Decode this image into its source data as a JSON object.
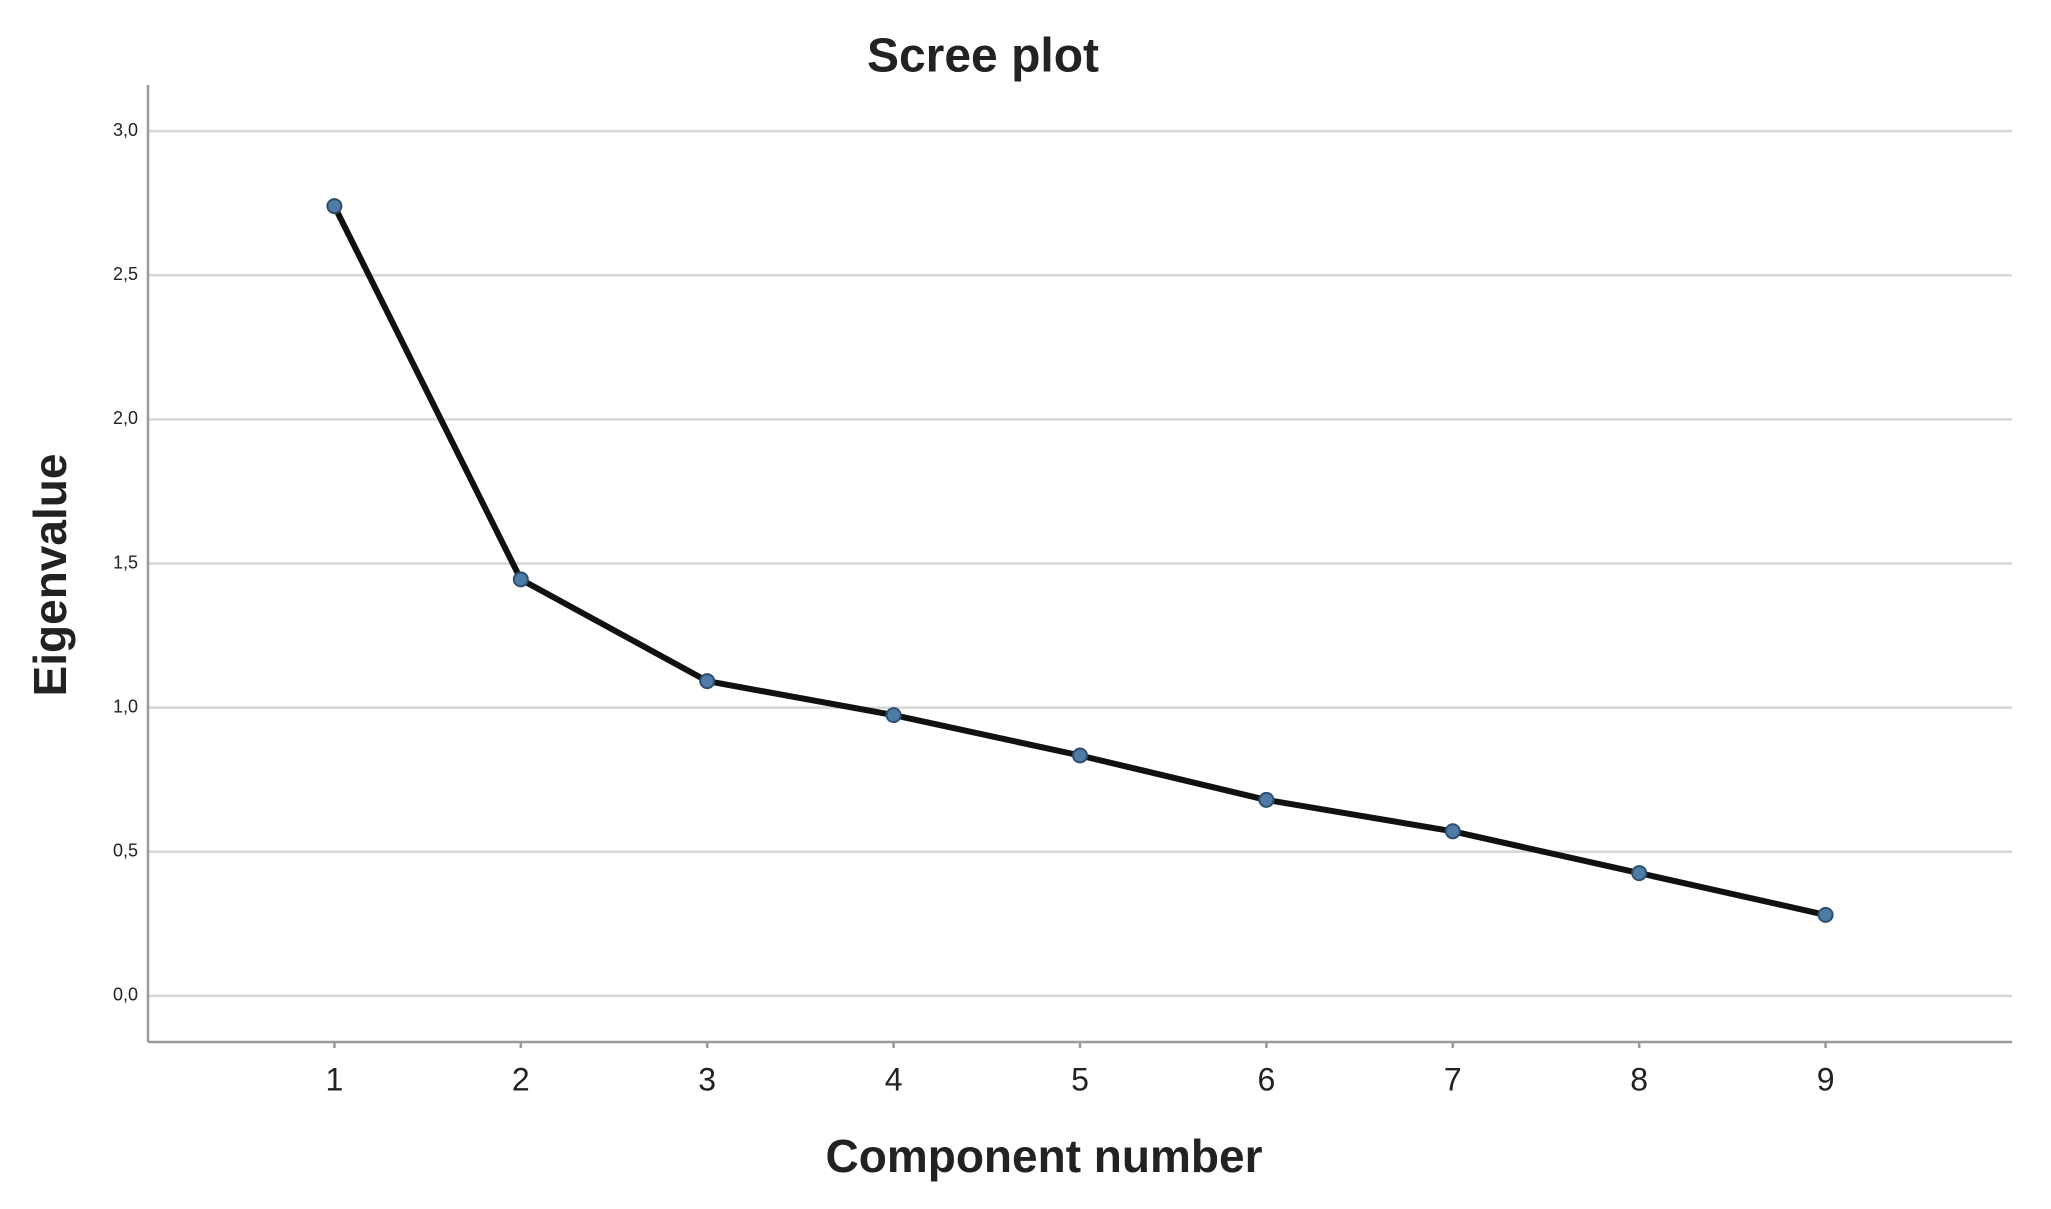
{
  "chart_data": {
    "type": "line",
    "title": "Scree plot",
    "x_label": "Component number",
    "y_label": "Eigenvalue",
    "x": [
      1,
      2,
      3,
      4,
      5,
      6,
      7,
      8,
      9
    ],
    "values": [
      2.74,
      1.445,
      1.092,
      0.974,
      0.834,
      0.68,
      0.571,
      0.426,
      0.281
    ],
    "color": "#111111",
    "marker_color": "#4f7ca6",
    "xlim": [
      0,
      10
    ],
    "xticks": [
      1,
      2,
      3,
      4,
      5,
      6,
      7,
      8,
      9
    ],
    "ylim": [
      -0.16,
      3.16
    ],
    "yticks": [
      {
        "value": 0,
        "label": "0,0"
      },
      {
        "value": 0.5,
        "label": "0,5"
      },
      {
        "value": 1,
        "label": "1,0"
      },
      {
        "value": 1.5,
        "label": "1,5"
      },
      {
        "value": 2,
        "label": "2,0"
      },
      {
        "value": 2.5,
        "label": "2,5"
      },
      {
        "value": 3,
        "label": "3,0"
      }
    ],
    "grid": true
  }
}
